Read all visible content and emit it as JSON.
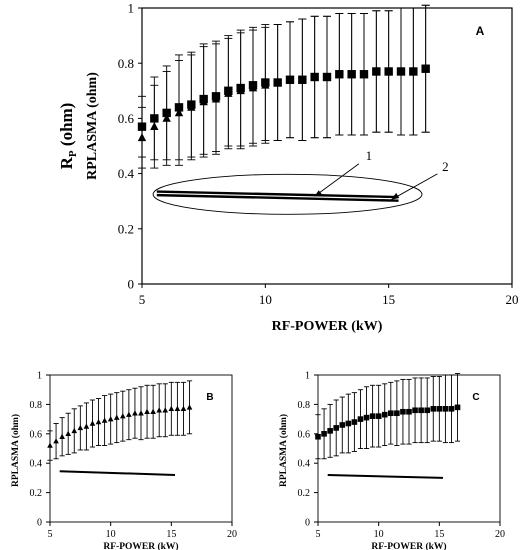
{
  "chart_data": [
    {
      "panel": "A",
      "type": "scatter",
      "panel_label": "A",
      "xlabel": "RF-POWER (kW)",
      "ylabel_top": "R",
      "ylabel_sub": "P",
      "ylabel_unit": " (ohm)",
      "ylabel_line2": "RPLASMA (ohm)",
      "xlim": [
        5,
        20
      ],
      "ylim": [
        0,
        1
      ],
      "x_ticks": [
        "5",
        "10",
        "15",
        "20"
      ],
      "y_ticks": [
        "0",
        "0.2",
        "0.4",
        "0.6",
        "0.8",
        "1"
      ],
      "grid": false,
      "series": [
        {
          "marker": "triangle",
          "x": [
            5,
            5.5,
            6,
            6.5,
            7,
            7.5,
            8,
            8.5,
            9,
            9.5,
            10,
            10.5,
            11,
            11.5,
            12,
            12.5,
            13,
            13.5,
            14,
            14.5,
            15,
            15.5,
            16,
            16.5
          ],
          "y": [
            0.53,
            0.57,
            0.6,
            0.62,
            0.64,
            0.66,
            0.67,
            0.69,
            0.7,
            0.71,
            0.72,
            0.73,
            0.74,
            0.74,
            0.75,
            0.75,
            0.76,
            0.76,
            0.76,
            0.77,
            0.77,
            0.77,
            0.77,
            0.78
          ],
          "err": [
            0.11,
            0.15,
            0.17,
            0.19,
            0.19,
            0.2,
            0.2,
            0.2,
            0.21,
            0.21,
            0.21,
            0.21,
            0.21,
            0.22,
            0.22,
            0.22,
            0.22,
            0.22,
            0.22,
            0.22,
            0.22,
            0.23,
            0.23,
            0.23
          ]
        },
        {
          "marker": "square",
          "x": [
            5,
            5.5,
            6,
            6.5,
            7,
            7.5,
            8,
            8.5,
            9,
            9.5,
            10,
            10.5,
            11,
            11.5,
            12,
            12.5,
            13,
            13.5,
            14,
            14.5,
            15,
            15.5,
            16,
            16.5
          ],
          "y": [
            0.57,
            0.6,
            0.62,
            0.64,
            0.65,
            0.67,
            0.68,
            0.7,
            0.71,
            0.72,
            0.73,
            0.73,
            0.74,
            0.74,
            0.75,
            0.75,
            0.76,
            0.76,
            0.76,
            0.77,
            0.77,
            0.77,
            0.77,
            0.78
          ],
          "err": [
            0.11,
            0.15,
            0.17,
            0.19,
            0.19,
            0.2,
            0.2,
            0.2,
            0.21,
            0.21,
            0.21,
            0.21,
            0.21,
            0.22,
            0.22,
            0.22,
            0.22,
            0.22,
            0.22,
            0.22,
            0.22,
            0.23,
            0.23,
            0.23
          ]
        },
        {
          "marker": "line",
          "x": [
            5.6,
            15.4
          ],
          "y": [
            0.335,
            0.315
          ]
        },
        {
          "marker": "line",
          "x": [
            5.6,
            15.4
          ],
          "y": [
            0.322,
            0.302
          ]
        }
      ],
      "annotations": [
        {
          "text": "1",
          "x": 14.2,
          "y": 0.45
        },
        {
          "text": "2",
          "x": 17.3,
          "y": 0.41
        }
      ]
    },
    {
      "panel": "B",
      "type": "scatter",
      "panel_label": "B",
      "xlabel": "RF-POWER (kW)",
      "ylabel": "RPLASMA (ohm)",
      "xlim": [
        5,
        20
      ],
      "ylim": [
        0,
        1
      ],
      "x_ticks": [
        "5",
        "10",
        "15",
        "20"
      ],
      "y_ticks": [
        "0",
        "0.2",
        "0.4",
        "0.6",
        "0.8",
        "1"
      ],
      "grid": false,
      "series": [
        {
          "marker": "triangle",
          "x": [
            5,
            5.5,
            6,
            6.5,
            7,
            7.5,
            8,
            8.5,
            9,
            9.5,
            10,
            10.5,
            11,
            11.5,
            12,
            12.5,
            13,
            13.5,
            14,
            14.5,
            15,
            15.5,
            16,
            16.5
          ],
          "y": [
            0.52,
            0.55,
            0.58,
            0.6,
            0.62,
            0.64,
            0.65,
            0.67,
            0.68,
            0.69,
            0.7,
            0.71,
            0.72,
            0.73,
            0.74,
            0.74,
            0.75,
            0.75,
            0.76,
            0.76,
            0.77,
            0.77,
            0.77,
            0.78
          ],
          "err": [
            0.1,
            0.12,
            0.13,
            0.14,
            0.15,
            0.15,
            0.16,
            0.16,
            0.16,
            0.17,
            0.17,
            0.17,
            0.17,
            0.17,
            0.17,
            0.18,
            0.18,
            0.18,
            0.18,
            0.18,
            0.18,
            0.18,
            0.18,
            0.18
          ]
        },
        {
          "marker": "line",
          "x": [
            5.8,
            15.3
          ],
          "y": [
            0.345,
            0.32
          ]
        }
      ]
    },
    {
      "panel": "C",
      "type": "scatter",
      "panel_label": "C",
      "xlabel": "RF-POWER (kW)",
      "ylabel": "RPLASMA (ohm)",
      "xlim": [
        5,
        20
      ],
      "ylim": [
        0,
        1
      ],
      "x_ticks": [
        "5",
        "10",
        "15",
        "20"
      ],
      "y_ticks": [
        "0",
        "0.2",
        "0.4",
        "0.6",
        "0.8",
        "1"
      ],
      "grid": false,
      "series": [
        {
          "marker": "square",
          "x": [
            5,
            5.5,
            6,
            6.5,
            7,
            7.5,
            8,
            8.5,
            9,
            9.5,
            10,
            10.5,
            11,
            11.5,
            12,
            12.5,
            13,
            13.5,
            14,
            14.5,
            15,
            15.5,
            16,
            16.5
          ],
          "y": [
            0.58,
            0.6,
            0.62,
            0.64,
            0.66,
            0.67,
            0.68,
            0.7,
            0.71,
            0.72,
            0.72,
            0.73,
            0.74,
            0.74,
            0.75,
            0.75,
            0.76,
            0.76,
            0.76,
            0.77,
            0.77,
            0.77,
            0.77,
            0.78
          ],
          "err": [
            0.15,
            0.17,
            0.18,
            0.19,
            0.19,
            0.2,
            0.2,
            0.2,
            0.21,
            0.21,
            0.21,
            0.21,
            0.21,
            0.22,
            0.22,
            0.22,
            0.22,
            0.22,
            0.22,
            0.22,
            0.22,
            0.23,
            0.23,
            0.23
          ]
        },
        {
          "marker": "line",
          "x": [
            5.8,
            15.3
          ],
          "y": [
            0.32,
            0.3
          ]
        }
      ]
    }
  ]
}
